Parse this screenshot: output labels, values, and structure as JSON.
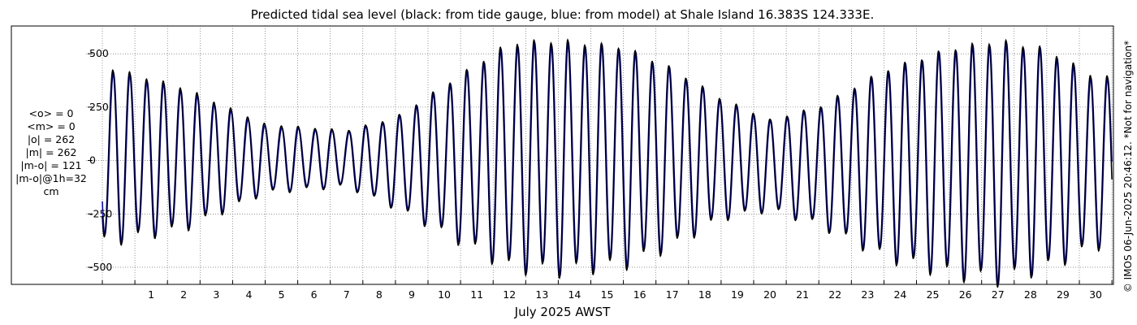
{
  "title": "Predicted tidal sea level (black: from tide gauge, blue: from model) at Shale Island 16.383S 124.333E.",
  "copyright": "© IMOS 06-Jun-2025 20:46:12. *Not for navigation*",
  "stats": [
    "<o> = 0",
    "<m> = 0",
    "|o| = 262",
    "|m| = 262",
    "|m-o| = 121",
    "|m-o|@1h=32",
    "cm"
  ],
  "colors": {
    "gauge": "#000000",
    "model": "#0000ee",
    "grid": "#555555"
  },
  "chart_data": {
    "type": "line",
    "title": "Predicted tidal sea level (black: from tide gauge, blue: from model) at Shale Island 16.383S 124.333E.",
    "xlabel": "July 2025 AWST",
    "ylabel": "",
    "xlim": [
      0,
      31
    ],
    "ylim": [
      -580,
      630
    ],
    "x_ticks": [
      1,
      2,
      3,
      4,
      5,
      6,
      7,
      8,
      9,
      10,
      11,
      12,
      13,
      14,
      15,
      16,
      17,
      18,
      19,
      20,
      21,
      22,
      23,
      24,
      25,
      26,
      27,
      28,
      29,
      30
    ],
    "y_ticks": [
      500,
      250,
      0,
      -250,
      -500
    ],
    "y_tick_labels": [
      "500",
      "250",
      "0",
      "-250",
      "-500"
    ],
    "grid": true,
    "units": "cm",
    "series": [
      {
        "name": "tide gauge",
        "color": "#000000",
        "description": "semidiurnal tide, two cycles per day",
        "envelope_days": [
          0.3,
          2.5,
          5.0,
          7.5,
          9.0,
          11.0,
          12.5,
          14.0,
          16.0,
          17.5,
          19.0,
          20.5,
          22.0,
          24.0,
          26.0,
          27.5,
          29.0,
          30.5
        ],
        "envelope_highs": [
          430,
          340,
          170,
          140,
          200,
          400,
          550,
          560,
          530,
          430,
          290,
          190,
          250,
          420,
          520,
          560,
          520,
          390
        ],
        "envelope_lows": [
          -380,
          -320,
          -150,
          -120,
          -220,
          -380,
          -500,
          -520,
          -490,
          -400,
          -270,
          -230,
          -300,
          -450,
          -530,
          -560,
          -500,
          -400
        ]
      },
      {
        "name": "model",
        "color": "#0000ee",
        "description": "semidiurnal tide, two cycles per day",
        "envelope_days": [
          0.3,
          2.5,
          5.0,
          7.5,
          9.0,
          11.0,
          12.5,
          14.0,
          16.0,
          17.5,
          19.0,
          20.5,
          22.0,
          24.0,
          26.0,
          27.5,
          29.0,
          30.5
        ],
        "envelope_highs": [
          420,
          330,
          160,
          135,
          195,
          395,
          540,
          550,
          525,
          425,
          285,
          185,
          245,
          415,
          515,
          550,
          515,
          380
        ],
        "envelope_lows": [
          -370,
          -310,
          -145,
          -115,
          -215,
          -370,
          -490,
          -510,
          -480,
          -390,
          -265,
          -225,
          -295,
          -440,
          -520,
          -550,
          -495,
          -390
        ]
      }
    ]
  }
}
